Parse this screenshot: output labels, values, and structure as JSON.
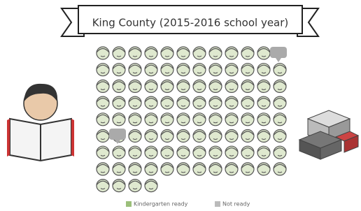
{
  "title": "King County (2015-2016 school year)",
  "legend": [
    "Kindergarten ready",
    "Not ready"
  ]
}
